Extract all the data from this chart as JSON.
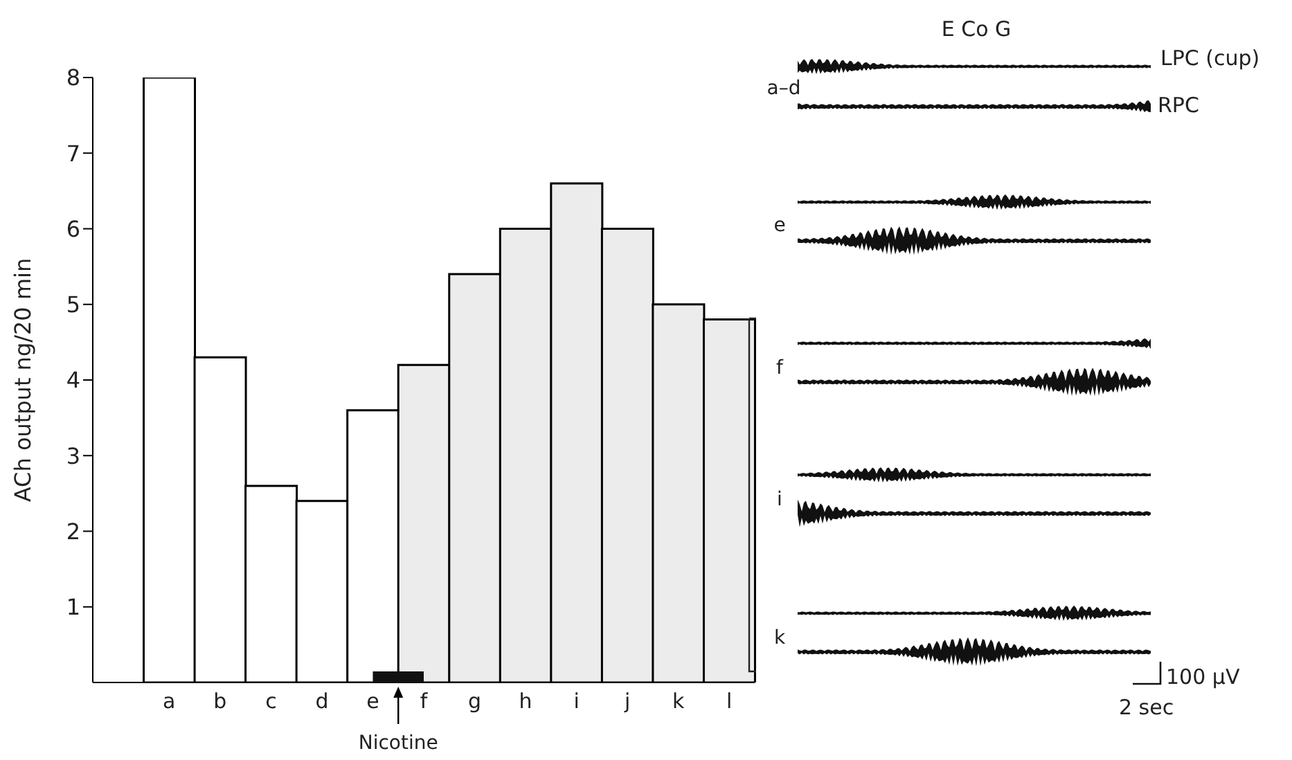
{
  "chart_data": {
    "type": "bar",
    "ylabel": "ACh output ng/20 min",
    "categories": [
      "a",
      "b",
      "c",
      "d",
      "e",
      "f",
      "g",
      "h",
      "i",
      "j",
      "k",
      "l"
    ],
    "values": [
      8,
      4.3,
      2.6,
      2.4,
      3.6,
      4.2,
      5.4,
      6.0,
      6.6,
      6.0,
      5.0,
      4.8
    ],
    "colors": [
      "#ffffff",
      "#ffffff",
      "#ffffff",
      "#ffffff",
      "#ffffff",
      "#ececec",
      "#ececec",
      "#ececec",
      "#ececec",
      "#ececec",
      "#ececec",
      "#ececec"
    ],
    "ylim": [
      0,
      8
    ],
    "yticks": [
      1,
      2,
      3,
      4,
      5,
      6,
      7,
      8
    ],
    "annotations": [
      "E Co G",
      "LPC (cup)",
      "RPC",
      "a–d",
      "e",
      "f",
      "i",
      "k",
      "100 μV",
      "2 sec",
      "Nicotine"
    ]
  }
}
